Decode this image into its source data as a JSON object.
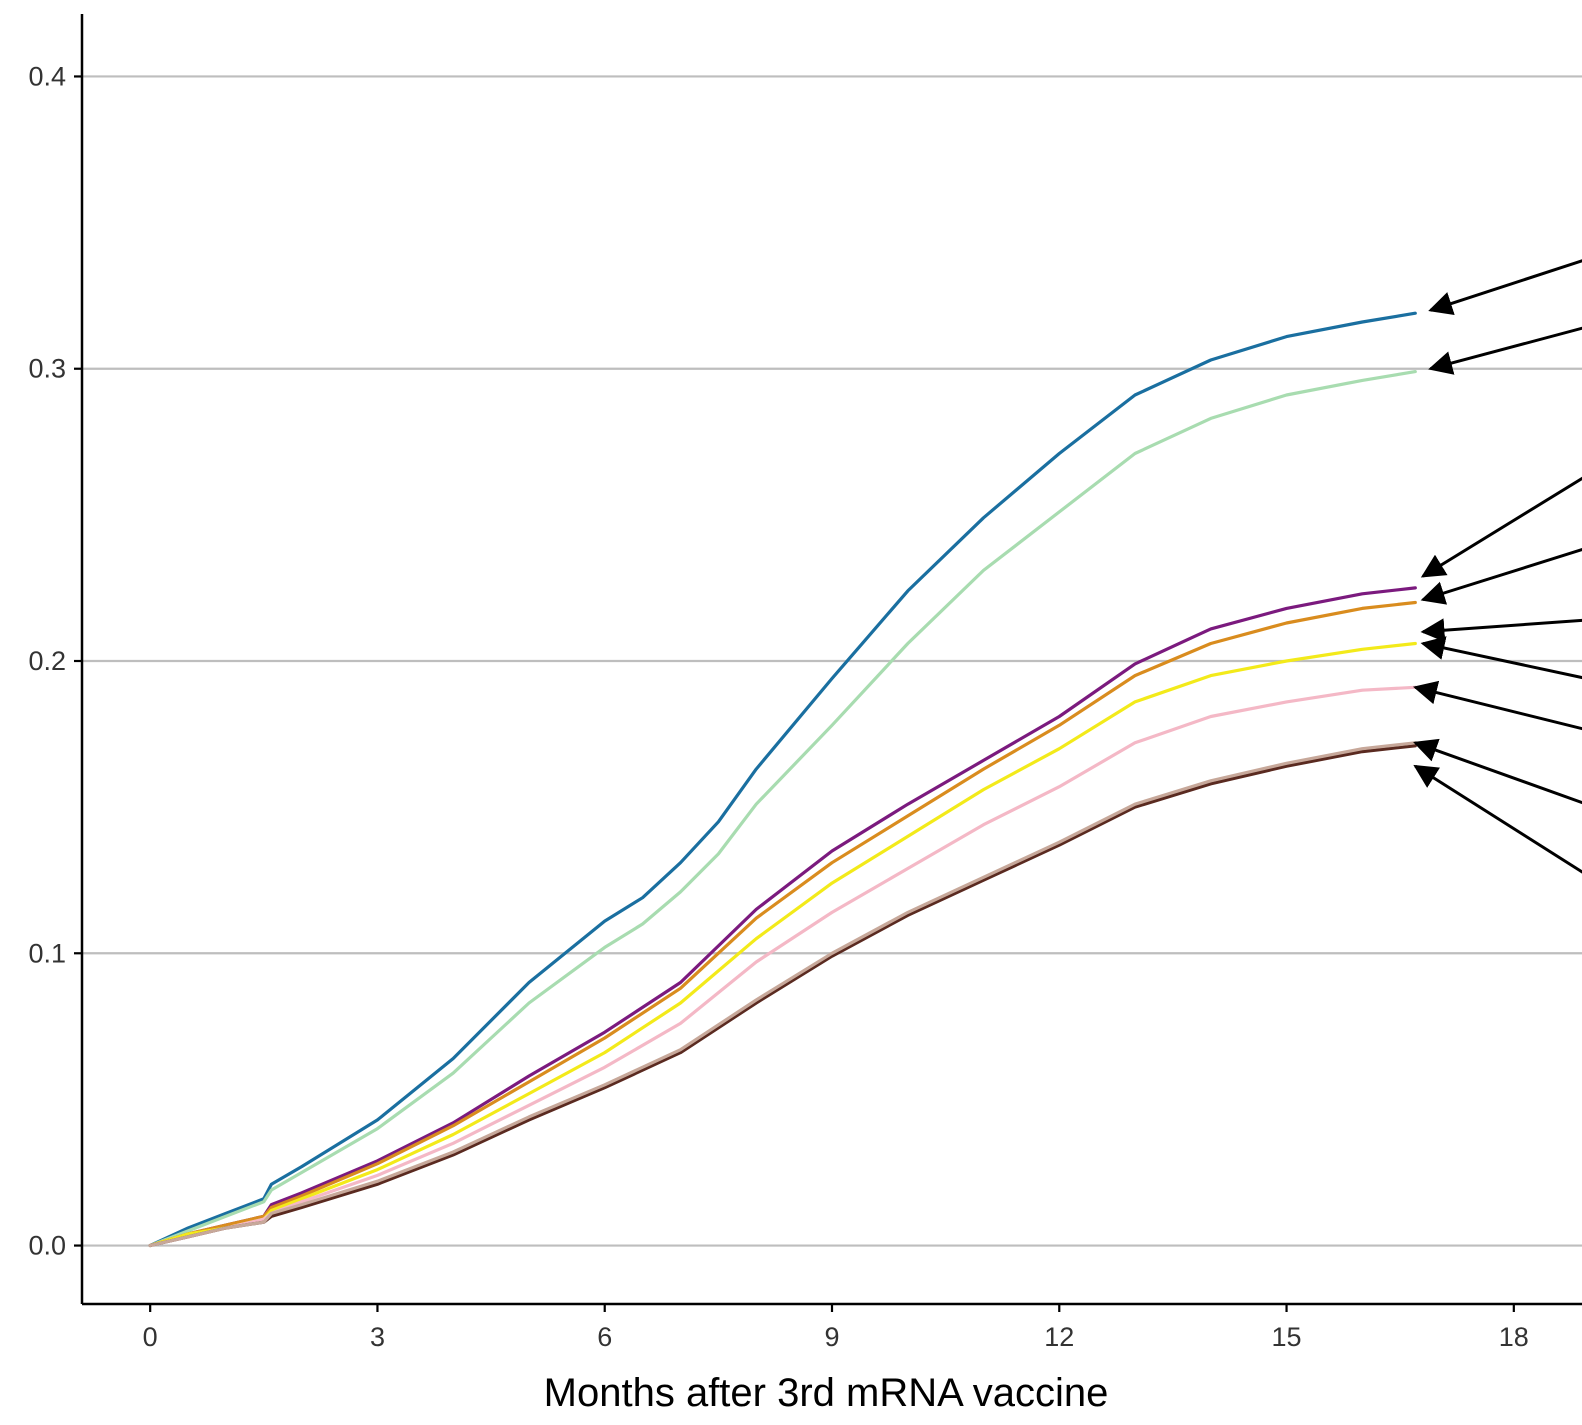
{
  "chart_data": {
    "type": "line",
    "title": "",
    "xlabel": "Months after 3rd mRNA vaccine",
    "ylabel": "",
    "xlim": [
      -0.9,
      18.9
    ],
    "ylim": [
      -0.02,
      0.42
    ],
    "x_ticks": [
      0,
      3,
      6,
      9,
      12,
      15,
      18
    ],
    "x_tick_labels": [
      "0",
      "3",
      "6",
      "9",
      "12",
      "15",
      "18"
    ],
    "y_ticks": [
      0.0,
      0.1,
      0.2,
      0.3,
      0.4
    ],
    "y_tick_labels": [
      "0.0",
      "0.1",
      "0.2",
      "0.3",
      "0.4"
    ],
    "grid": "horizontal-major",
    "legend": "none",
    "series": [
      {
        "color": "#1a6fa0",
        "x": [
          0,
          0.5,
          1.0,
          1.5,
          1.6,
          2,
          3,
          4,
          5,
          6,
          6.5,
          7,
          7.5,
          8,
          9,
          10,
          11,
          12,
          13,
          14,
          15,
          16,
          16.7
        ],
        "y": [
          0,
          0.006,
          0.011,
          0.016,
          0.021,
          0.027,
          0.043,
          0.064,
          0.09,
          0.111,
          0.119,
          0.131,
          0.145,
          0.163,
          0.194,
          0.224,
          0.249,
          0.271,
          0.291,
          0.303,
          0.311,
          0.316,
          0.319
        ]
      },
      {
        "color": "#a8dcb0",
        "x": [
          0,
          0.5,
          1.0,
          1.5,
          1.6,
          2,
          3,
          4,
          5,
          6,
          6.5,
          7,
          7.5,
          8,
          9,
          10,
          11,
          12,
          13,
          14,
          15,
          16,
          16.7
        ],
        "y": [
          0,
          0.005,
          0.01,
          0.015,
          0.019,
          0.025,
          0.04,
          0.059,
          0.083,
          0.102,
          0.11,
          0.121,
          0.134,
          0.151,
          0.178,
          0.206,
          0.231,
          0.251,
          0.271,
          0.283,
          0.291,
          0.296,
          0.299
        ]
      },
      {
        "color": "#7b1a7e",
        "x": [
          0,
          0.5,
          1.0,
          1.5,
          1.6,
          2,
          3,
          4,
          5,
          6,
          7,
          8,
          9,
          10,
          11,
          12,
          13,
          14,
          15,
          16,
          16.7
        ],
        "y": [
          0,
          0.004,
          0.007,
          0.01,
          0.014,
          0.018,
          0.029,
          0.042,
          0.058,
          0.073,
          0.09,
          0.115,
          0.135,
          0.151,
          0.166,
          0.181,
          0.199,
          0.211,
          0.218,
          0.223,
          0.225
        ]
      },
      {
        "color": "#d98c1e",
        "x": [
          0,
          0.5,
          1.0,
          1.5,
          1.6,
          2,
          3,
          4,
          5,
          6,
          7,
          8,
          9,
          10,
          11,
          12,
          13,
          14,
          15,
          16,
          16.7
        ],
        "y": [
          0,
          0.004,
          0.007,
          0.01,
          0.013,
          0.017,
          0.028,
          0.041,
          0.056,
          0.071,
          0.088,
          0.112,
          0.131,
          0.147,
          0.163,
          0.178,
          0.195,
          0.206,
          0.213,
          0.218,
          0.22
        ]
      },
      {
        "color": "#f3ea1a",
        "x": [
          0,
          0.5,
          1.0,
          1.5,
          1.6,
          2,
          3,
          4,
          5,
          6,
          7,
          8,
          9,
          10,
          11,
          12,
          13,
          14,
          15,
          16,
          16.7
        ],
        "y": [
          0,
          0.004,
          0.006,
          0.009,
          0.012,
          0.016,
          0.026,
          0.038,
          0.052,
          0.066,
          0.083,
          0.105,
          0.124,
          0.14,
          0.156,
          0.17,
          0.186,
          0.195,
          0.2,
          0.204,
          0.206
        ]
      },
      {
        "color": "#f4b8c6",
        "x": [
          0,
          0.5,
          1.0,
          1.5,
          1.6,
          2,
          3,
          4,
          5,
          6,
          7,
          8,
          9,
          10,
          11,
          12,
          13,
          14,
          15,
          16,
          16.7
        ],
        "y": [
          0,
          0.003,
          0.006,
          0.009,
          0.011,
          0.015,
          0.024,
          0.035,
          0.048,
          0.061,
          0.076,
          0.097,
          0.114,
          0.129,
          0.144,
          0.157,
          0.172,
          0.181,
          0.186,
          0.19,
          0.191
        ]
      },
      {
        "color": "#5a2a20",
        "x": [
          0,
          0.5,
          1.0,
          1.5,
          1.6,
          2,
          3,
          4,
          5,
          6,
          7,
          8,
          9,
          10,
          11,
          12,
          13,
          14,
          15,
          16,
          16.7
        ],
        "y": [
          0,
          0.003,
          0.006,
          0.008,
          0.01,
          0.013,
          0.021,
          0.031,
          0.043,
          0.054,
          0.066,
          0.083,
          0.099,
          0.113,
          0.125,
          0.137,
          0.15,
          0.158,
          0.164,
          0.169,
          0.171
        ]
      },
      {
        "color": "#c7a89a",
        "x": [
          0,
          0.5,
          1.0,
          1.5,
          1.6,
          2,
          3,
          4,
          5,
          6,
          7,
          8,
          9,
          10,
          11,
          12,
          13,
          14,
          15,
          16,
          16.7
        ],
        "y": [
          0,
          0.003,
          0.006,
          0.008,
          0.011,
          0.014,
          0.022,
          0.032,
          0.044,
          0.055,
          0.067,
          0.084,
          0.1,
          0.114,
          0.126,
          0.138,
          0.151,
          0.159,
          0.165,
          0.17,
          0.172
        ]
      }
    ],
    "annotations": {
      "type": "arrows",
      "targets": [
        {
          "x": 16.9,
          "y": 0.32
        },
        {
          "x": 16.9,
          "y": 0.3
        },
        {
          "x": 16.8,
          "y": 0.229
        },
        {
          "x": 16.8,
          "y": 0.221
        },
        {
          "x": 16.8,
          "y": 0.21
        },
        {
          "x": 16.8,
          "y": 0.206
        },
        {
          "x": 16.7,
          "y": 0.191
        },
        {
          "x": 16.7,
          "y": 0.172
        },
        {
          "x": 16.7,
          "y": 0.164
        }
      ],
      "sources": [
        {
          "x": 19.5,
          "y": 0.342
        },
        {
          "x": 19.5,
          "y": 0.318
        },
        {
          "x": 19.5,
          "y": 0.272
        },
        {
          "x": 19.5,
          "y": 0.243
        },
        {
          "x": 19.5,
          "y": 0.215
        },
        {
          "x": 19.5,
          "y": 0.191
        },
        {
          "x": 19.5,
          "y": 0.173
        },
        {
          "x": 19.5,
          "y": 0.146
        },
        {
          "x": 19.5,
          "y": 0.118
        }
      ]
    }
  }
}
